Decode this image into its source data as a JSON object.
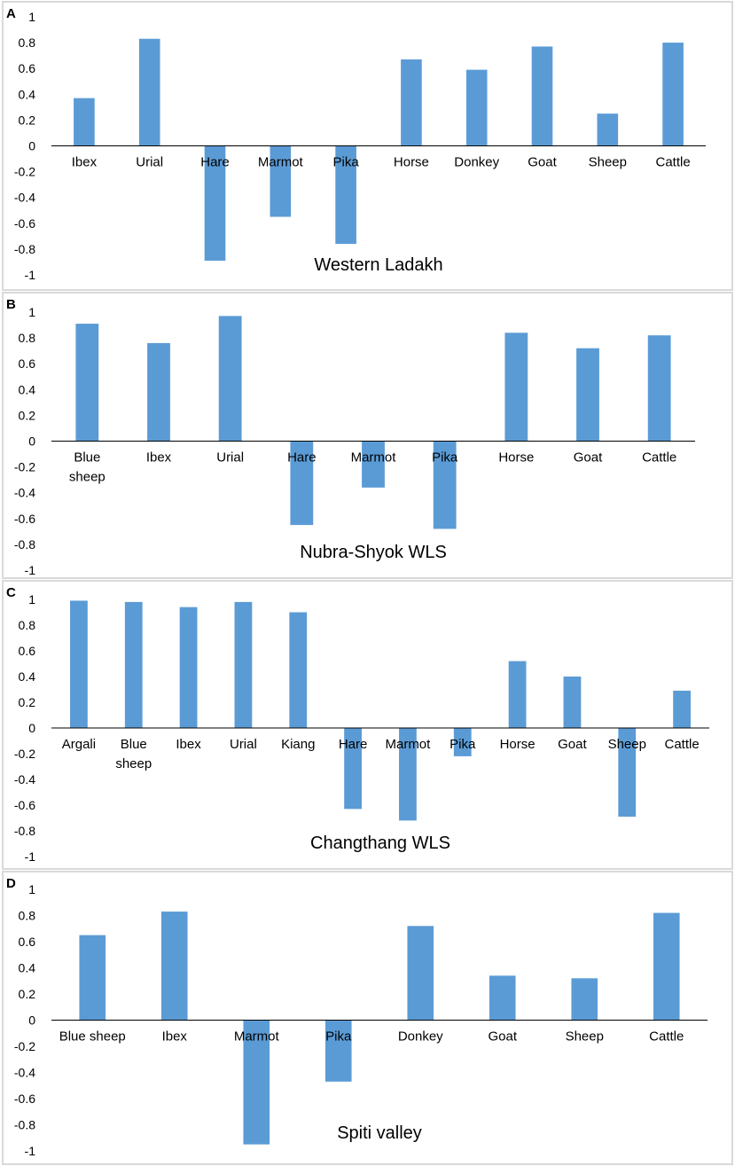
{
  "colors": {
    "bar": "#5b9bd5",
    "axis": "#000000",
    "panel_border": "#d9d9d9",
    "label": "#000000"
  },
  "chart_data": [
    {
      "type": "bar",
      "panel": "A",
      "title": "Western Ladakh",
      "categories": [
        "Ibex",
        "Urial",
        "Hare",
        "Marmot",
        "Pika",
        "Horse",
        "Donkey",
        "Goat",
        "Sheep",
        "Cattle"
      ],
      "values": [
        0.37,
        0.83,
        -0.89,
        -0.55,
        -0.76,
        0.67,
        0.59,
        0.77,
        0.25,
        0.8
      ],
      "yticks": [
        "1",
        "0.8",
        "0.6",
        "0.4",
        "0.2",
        "0",
        "-0.2",
        "-0.4",
        "-0.6",
        "-0.8",
        "-1"
      ],
      "ylim": [
        -1,
        1
      ],
      "xlabel": "",
      "ylabel": ""
    },
    {
      "type": "bar",
      "panel": "B",
      "title": "Nubra-Shyok WLS",
      "categories": [
        "Blue sheep",
        "Ibex",
        "Urial",
        "Hare",
        "Marmot",
        "Pika",
        "Horse",
        "Goat",
        "Cattle"
      ],
      "values": [
        0.91,
        0.76,
        0.97,
        -0.65,
        -0.36,
        -0.68,
        0.84,
        0.72,
        0.82
      ],
      "yticks": [
        "1",
        "0.8",
        "0.6",
        "0.4",
        "0.2",
        "0",
        "-0.2",
        "-0.4",
        "-0.6",
        "-0.8",
        "-1"
      ],
      "ylim": [
        -1,
        1
      ],
      "xlabel": "",
      "ylabel": ""
    },
    {
      "type": "bar",
      "panel": "C",
      "title": "Changthang WLS",
      "categories": [
        "Argali",
        "Blue sheep",
        "Ibex",
        "Urial",
        "Kiang",
        "Hare",
        "Marmot",
        "Pika",
        "Horse",
        "Goat",
        "Sheep",
        "Cattle"
      ],
      "values": [
        0.99,
        0.98,
        0.94,
        0.98,
        0.9,
        -0.63,
        -0.72,
        -0.22,
        0.52,
        0.4,
        -0.69,
        0.29
      ],
      "yticks": [
        "1",
        "0.8",
        "0.6",
        "0.4",
        "0.2",
        "0",
        "-0.2",
        "-0.4",
        "-0.6",
        "-0.8",
        "-1"
      ],
      "ylim": [
        -1,
        1
      ],
      "xlabel": "",
      "ylabel": ""
    },
    {
      "type": "bar",
      "panel": "D",
      "title": "Spiti valley",
      "categories": [
        "Blue sheep",
        "Ibex",
        "Marmot",
        "Pika",
        "Donkey",
        "Goat",
        "Sheep",
        "Cattle"
      ],
      "values": [
        0.65,
        0.83,
        -0.95,
        -0.47,
        0.72,
        0.34,
        0.32,
        0.82
      ],
      "yticks": [
        "1",
        "0.8",
        "0.6",
        "0.4",
        "0.2",
        "0",
        "-0.2",
        "-0.4",
        "-0.6",
        "-0.8",
        "-1"
      ],
      "ylim": [
        -1,
        1
      ],
      "xlabel": "",
      "ylabel": ""
    }
  ]
}
